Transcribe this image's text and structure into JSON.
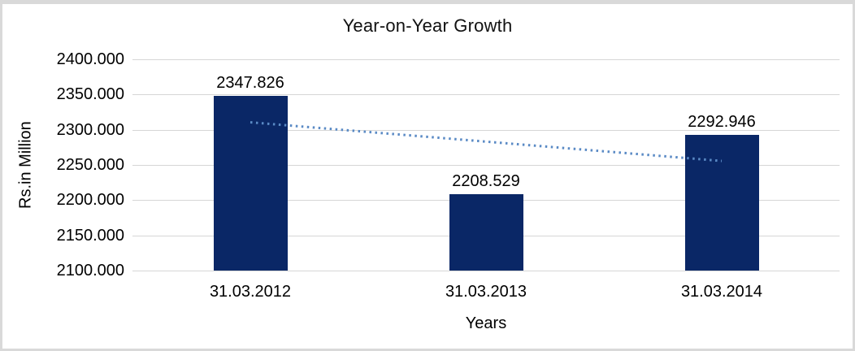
{
  "window": {
    "background": "#ffffff",
    "border_color": "#d9d9d9"
  },
  "chart_data": {
    "type": "bar",
    "title": "Year-on-Year Growth",
    "xlabel": "Years",
    "ylabel": "Rs.in Million",
    "categories": [
      "31.03.2012",
      "31.03.2013",
      "31.03.2014"
    ],
    "values": [
      2347.826,
      2208.529,
      2292.946
    ],
    "value_labels": [
      "2347.826",
      "2208.529",
      "2292.946"
    ],
    "ylim": [
      2100,
      2400
    ],
    "ytick_step": 50,
    "yticks": [
      "2400.000",
      "2350.000",
      "2300.000",
      "2250.000",
      "2200.000",
      "2150.000",
      "2100.000"
    ],
    "grid": "horizontal",
    "legend": "none",
    "trendline": {
      "type": "linear",
      "style": "dotted",
      "values": [
        2310.534,
        2283.094,
        2255.654
      ]
    },
    "colors": {
      "bar": "#0a2766",
      "trendline": "#5a8ac5",
      "gridline": "#d6d6d6",
      "text": "#000000"
    }
  }
}
